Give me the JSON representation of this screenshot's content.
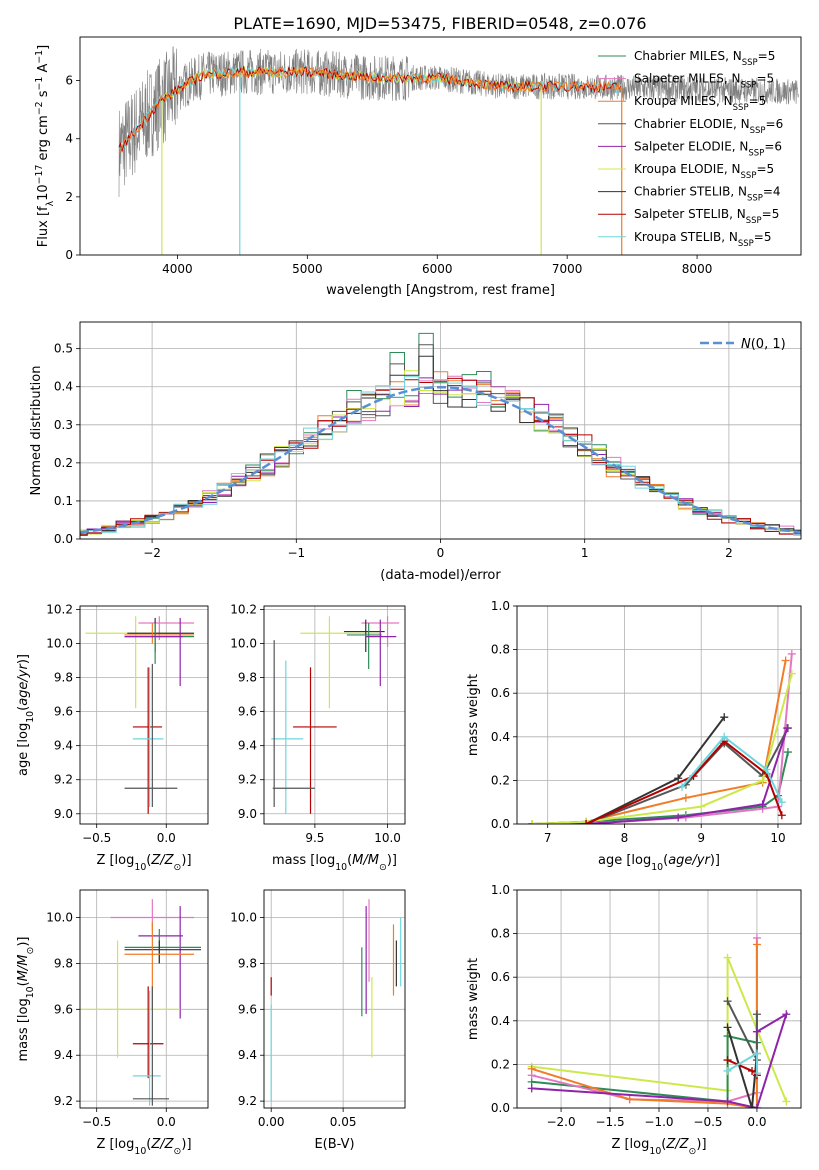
{
  "figure_title": "PLATE=1690, MJD=53475, FIBERID=0548, z=0.076",
  "colors": {
    "Chabrier MILES": "#2e8b57",
    "Salpeter MILES": "#e377c2",
    "Kroupa MILES": "#f07c28",
    "Chabrier ELODIE": "#555555",
    "Salpeter ELODIE": "#8e24aa",
    "Kroupa ELODIE": "#cde84b",
    "Chabrier STELIB": "#333333",
    "Salpeter STELIB": "#b30000",
    "Kroupa STELIB": "#6fd6dc",
    "model_gaussian": "#5a8fd6",
    "grid": "#b0b0b0"
  },
  "chart_data": [
    {
      "id": "spectrum",
      "type": "line",
      "xlabel": "wavelength [Angstrom, rest frame]",
      "ylabel": "Flux [f_λ 10^-17 erg cm^-2 s^-1 A^-1]",
      "xlim": [
        3250,
        8800
      ],
      "ylim": [
        0,
        7.5
      ],
      "xticks": [
        4000,
        5000,
        6000,
        7000,
        8000
      ],
      "yticks": [
        0,
        2,
        4,
        6
      ],
      "grid": false,
      "legend_position": "upper-right",
      "legend": [
        {
          "label": "Chabrier MILES, N",
          "sub": "SSP",
          "suffix": "=5"
        },
        {
          "label": "Salpeter MILES, N",
          "sub": "SSP",
          "suffix": "=5"
        },
        {
          "label": "Kroupa MILES, N",
          "sub": "SSP",
          "suffix": "=5"
        },
        {
          "label": "Chabrier ELODIE, N",
          "sub": "SSP",
          "suffix": "=6"
        },
        {
          "label": "Salpeter ELODIE, N",
          "sub": "SSP",
          "suffix": "=6"
        },
        {
          "label": "Kroupa ELODIE, N",
          "sub": "SSP",
          "suffix": "=5"
        },
        {
          "label": "Chabrier STELIB, N",
          "sub": "SSP",
          "suffix": "=4"
        },
        {
          "label": "Salpeter STELIB, N",
          "sub": "SSP",
          "suffix": "=5"
        },
        {
          "label": "Kroupa STELIB, N",
          "sub": "SSP",
          "suffix": "=5"
        }
      ],
      "data_continuum": {
        "x": [
          3550,
          3700,
          3850,
          4000,
          4200,
          4500,
          5000,
          5500,
          6000,
          6500,
          7000,
          7500,
          8000,
          8500,
          8800
        ],
        "y": [
          3.6,
          4.4,
          5.2,
          5.7,
          6.2,
          6.3,
          6.3,
          6.1,
          6.1,
          5.8,
          5.8,
          5.75,
          5.7,
          5.65,
          5.6
        ]
      },
      "model_spans": [
        {
          "name": "Kroupa ELODIE",
          "x": [
            3880,
            6800
          ]
        },
        {
          "name": "Kroupa STELIB",
          "x": [
            3550,
            7420
          ]
        },
        {
          "name": "Salpeter STELIB",
          "x": [
            3550,
            7420
          ]
        },
        {
          "name": "Kroupa MILES",
          "x": [
            3550,
            7420
          ]
        }
      ]
    },
    {
      "id": "residuals",
      "type": "histogram",
      "xlabel": "(data-model)/error",
      "ylabel": "Normed distribution",
      "xlim": [
        -2.5,
        2.5
      ],
      "ylim": [
        0,
        0.57
      ],
      "xticks": [
        -2,
        -1,
        0,
        1,
        2
      ],
      "yticks": [
        0.0,
        0.1,
        0.2,
        0.3,
        0.4,
        0.5
      ],
      "grid": true,
      "legend": [
        "N(0, 1)"
      ],
      "legend_position": "upper-right",
      "spikes": [
        {
          "x": -0.25,
          "h": 0.49
        },
        {
          "x": -0.05,
          "h": 0.54
        },
        {
          "x": 0.35,
          "h": 0.44
        },
        {
          "x": -0.55,
          "h": 0.39
        }
      ]
    },
    {
      "id": "age_vs_Z",
      "type": "errorbar",
      "xlabel": "Z [log10(Z/Z⊙)]",
      "ylabel": "age  [log10(age/yr)]",
      "xlim": [
        -0.62,
        0.3
      ],
      "ylim": [
        8.94,
        10.22
      ],
      "xticks": [
        -0.5,
        0.0
      ],
      "yticks": [
        9.0,
        9.2,
        9.4,
        9.6,
        9.8,
        10.0,
        10.2
      ],
      "grid": true,
      "points": [
        {
          "s": "Kroupa ELODIE",
          "x": -0.22,
          "y": 10.06,
          "xe": [
            -0.58,
            0.1
          ],
          "ye": [
            9.62,
            10.16
          ]
        },
        {
          "s": "Salpeter MILES",
          "x": -0.05,
          "y": 10.12,
          "xe": [
            -0.2,
            0.2
          ],
          "ye": [
            10.02,
            10.16
          ]
        },
        {
          "s": "Chabrier STELIB",
          "x": -0.08,
          "y": 10.06,
          "xe": [
            -0.28,
            0.2
          ],
          "ye": [
            9.95,
            10.15
          ]
        },
        {
          "s": "Kroupa MILES",
          "x": -0.1,
          "y": 10.05,
          "xe": [
            -0.3,
            0.2
          ],
          "ye": [
            10.0,
            10.12
          ]
        },
        {
          "s": "Chabrier MILES",
          "x": -0.08,
          "y": 10.04,
          "xe": [
            -0.3,
            0.2
          ],
          "ye": [
            9.88,
            10.12
          ]
        },
        {
          "s": "Salpeter ELODIE",
          "x": 0.1,
          "y": 10.04,
          "xe": [
            -0.3,
            0.12
          ],
          "ye": [
            9.75,
            10.15
          ]
        },
        {
          "s": "Salpeter STELIB",
          "x": -0.13,
          "y": 9.51,
          "xe": [
            -0.24,
            -0.03
          ],
          "ye": [
            9.0,
            9.86
          ]
        },
        {
          "s": "Kroupa STELIB",
          "x": -0.12,
          "y": 9.44,
          "xe": [
            -0.24,
            -0.02
          ],
          "ye": [
            9.04,
            9.86
          ]
        },
        {
          "s": "Chabrier ELODIE",
          "x": -0.1,
          "y": 9.15,
          "xe": [
            -0.3,
            0.08
          ],
          "ye": [
            9.04,
            9.88
          ]
        }
      ]
    },
    {
      "id": "age_vs_mass",
      "type": "errorbar",
      "xlabel": "mass [log10(M/M⊙)]",
      "ylabel": "",
      "xlim": [
        9.15,
        10.12
      ],
      "ylim": [
        8.94,
        10.22
      ],
      "xticks": [
        9.5,
        10.0
      ],
      "yticks": [
        9.0,
        9.2,
        9.4,
        9.6,
        9.8,
        10.0,
        10.2
      ],
      "grid": true,
      "points": [
        {
          "s": "Kroupa ELODIE",
          "x": 9.6,
          "y": 10.06,
          "xe": [
            9.4,
            9.95
          ],
          "ye": [
            9.62,
            10.16
          ]
        },
        {
          "s": "Salpeter MILES",
          "x": 10.0,
          "y": 10.12,
          "xe": [
            9.82,
            10.08
          ],
          "ye": [
            9.98,
            10.16
          ]
        },
        {
          "s": "Chabrier STELIB",
          "x": 9.85,
          "y": 10.07,
          "xe": [
            9.7,
            9.98
          ],
          "ye": [
            9.95,
            10.14
          ]
        },
        {
          "s": "Chabrier MILES",
          "x": 9.87,
          "y": 10.05,
          "xe": [
            9.72,
            9.96
          ],
          "ye": [
            9.85,
            10.12
          ]
        },
        {
          "s": "Salpeter ELODIE",
          "x": 9.95,
          "y": 10.04,
          "xe": [
            9.85,
            10.06
          ],
          "ye": [
            9.75,
            10.14
          ]
        },
        {
          "s": "Salpeter STELIB",
          "x": 9.47,
          "y": 9.51,
          "xe": [
            9.35,
            9.65
          ],
          "ye": [
            9.0,
            9.86
          ]
        },
        {
          "s": "Kroupa STELIB",
          "x": 9.3,
          "y": 9.44,
          "xe": [
            9.2,
            9.42
          ],
          "ye": [
            9.0,
            9.9
          ]
        },
        {
          "s": "Chabrier ELODIE",
          "x": 9.22,
          "y": 9.15,
          "xe": [
            9.21,
            9.5
          ],
          "ye": [
            9.04,
            10.02
          ]
        }
      ]
    },
    {
      "id": "weight_vs_age",
      "type": "line",
      "xlabel": "age  [log10(age/yr)]",
      "ylabel": "mass weight",
      "xlim": [
        6.6,
        10.3
      ],
      "ylim": [
        0,
        1.0
      ],
      "xticks": [
        7,
        8,
        9,
        10
      ],
      "yticks": [
        0.0,
        0.2,
        0.4,
        0.6,
        0.8,
        1.0
      ],
      "grid": true,
      "series": [
        {
          "name": "Chabrier MILES",
          "x": [
            6.8,
            7.5,
            8.8,
            9.8,
            10.0,
            10.13
          ],
          "y": [
            0.0,
            0.01,
            0.04,
            0.08,
            0.13,
            0.33
          ]
        },
        {
          "name": "Salpeter MILES",
          "x": [
            6.8,
            7.5,
            8.8,
            9.8,
            10.0,
            10.18
          ],
          "y": [
            0.0,
            0.0,
            0.03,
            0.07,
            0.08,
            0.78
          ]
        },
        {
          "name": "Kroupa MILES",
          "x": [
            6.8,
            7.5,
            8.8,
            9.8,
            10.1
          ],
          "y": [
            0.0,
            0.01,
            0.12,
            0.19,
            0.75
          ]
        },
        {
          "name": "Chabrier ELODIE",
          "x": [
            6.8,
            7.5,
            8.8,
            9.3,
            9.8,
            10.13
          ],
          "y": [
            0.0,
            0.0,
            0.18,
            0.37,
            0.22,
            0.44
          ]
        },
        {
          "name": "Salpeter ELODIE",
          "x": [
            6.8,
            7.5,
            8.7,
            9.8,
            10.12
          ],
          "y": [
            0.0,
            0.0,
            0.03,
            0.09,
            0.44
          ]
        },
        {
          "name": "Kroupa ELODIE",
          "x": [
            6.8,
            7.5,
            9.0,
            9.8,
            10.18
          ],
          "y": [
            0.0,
            0.01,
            0.08,
            0.2,
            0.69
          ]
        },
        {
          "name": "Chabrier STELIB",
          "x": [
            7.5,
            8.7,
            9.3
          ],
          "y": [
            0.0,
            0.21,
            0.49
          ]
        },
        {
          "name": "Salpeter STELIB",
          "x": [
            7.5,
            8.9,
            9.3,
            9.85,
            10.05
          ],
          "y": [
            0.0,
            0.22,
            0.38,
            0.23,
            0.04
          ]
        },
        {
          "name": "Kroupa STELIB",
          "x": [
            8.75,
            9.3,
            9.85,
            10.05
          ],
          "y": [
            0.17,
            0.4,
            0.25,
            0.1
          ]
        }
      ]
    },
    {
      "id": "mass_vs_Z",
      "type": "errorbar",
      "xlabel": "Z [log10(Z/Z⊙)]",
      "ylabel": "mass [log10(M/M⊙)]",
      "xlim": [
        -0.62,
        0.3
      ],
      "ylim": [
        9.17,
        10.12
      ],
      "xticks": [
        -0.5,
        0.0
      ],
      "yticks": [
        9.2,
        9.4,
        9.6,
        9.8,
        10.0
      ],
      "grid": true,
      "points": [
        {
          "s": "Salpeter MILES",
          "x": -0.1,
          "y": 10.0,
          "xe": [
            -0.4,
            0.2
          ],
          "ye": [
            9.94,
            10.08
          ]
        },
        {
          "s": "Salpeter ELODIE",
          "x": 0.1,
          "y": 9.92,
          "xe": [
            -0.2,
            0.12
          ],
          "ye": [
            9.56,
            10.05
          ]
        },
        {
          "s": "Chabrier MILES",
          "x": -0.05,
          "y": 9.87,
          "xe": [
            -0.3,
            0.25
          ],
          "ye": [
            9.8,
            9.95
          ]
        },
        {
          "s": "Chabrier STELIB",
          "x": -0.05,
          "y": 9.86,
          "xe": [
            -0.3,
            0.25
          ],
          "ye": [
            9.8,
            9.9
          ]
        },
        {
          "s": "Kroupa MILES",
          "x": -0.1,
          "y": 9.84,
          "xe": [
            -0.3,
            0.2
          ],
          "ye": [
            9.6,
            9.98
          ]
        },
        {
          "s": "Kroupa ELODIE",
          "x": -0.35,
          "y": 9.6,
          "xe": [
            -0.62,
            0.1
          ],
          "ye": [
            9.39,
            9.9
          ]
        },
        {
          "s": "Salpeter STELIB",
          "x": -0.13,
          "y": 9.45,
          "xe": [
            -0.24,
            -0.02
          ],
          "ye": [
            9.3,
            9.7
          ]
        },
        {
          "s": "Kroupa STELIB",
          "x": -0.12,
          "y": 9.31,
          "xe": [
            -0.24,
            -0.04
          ],
          "ye": [
            9.18,
            9.68
          ]
        },
        {
          "s": "Chabrier ELODIE",
          "x": -0.1,
          "y": 9.21,
          "xe": [
            -0.24,
            0.02
          ],
          "ye": [
            9.18,
            9.7
          ]
        }
      ]
    },
    {
      "id": "mass_vs_ebv",
      "type": "errorbar",
      "xlabel": "E(B-V)",
      "ylabel": "",
      "xlim": [
        -0.005,
        0.093
      ],
      "ylim": [
        9.17,
        10.12
      ],
      "xticks": [
        0.0,
        0.05
      ],
      "yticks": [
        9.2,
        9.4,
        9.6,
        9.8,
        10.0
      ],
      "grid": true,
      "points": [
        {
          "s": "Chabrier MILES",
          "x": 0.063,
          "ye": [
            9.57,
            9.87
          ]
        },
        {
          "s": "Salpeter ELODIE",
          "x": 0.066,
          "ye": [
            9.58,
            10.05
          ]
        },
        {
          "s": "Kroupa ELODIE",
          "x": 0.07,
          "ye": [
            9.39,
            9.74
          ]
        },
        {
          "s": "Salpeter MILES",
          "x": 0.068,
          "ye": [
            9.72,
            10.08
          ]
        },
        {
          "s": "Kroupa MILES",
          "x": 0.085,
          "ye": [
            9.66,
            9.97
          ]
        },
        {
          "s": "Chabrier STELIB",
          "x": 0.087,
          "ye": [
            9.7,
            9.9
          ]
        },
        {
          "s": "Kroupa STELIB",
          "x": 0.09,
          "ye": [
            9.7,
            10.0
          ]
        },
        {
          "s": "Salpeter STELIB",
          "x": 0.0,
          "ye": [
            9.66,
            9.74
          ]
        },
        {
          "s": "Kroupa STELIB",
          "x": 0.0,
          "ye": [
            9.2,
            9.62
          ]
        }
      ]
    },
    {
      "id": "weight_vs_Z",
      "type": "line",
      "xlabel": "Z [log10(Z/Z⊙)]",
      "ylabel": "mass weight",
      "xlim": [
        -2.45,
        0.45
      ],
      "ylim": [
        0,
        1.0
      ],
      "xticks": [
        -2.0,
        -1.5,
        -1.0,
        -0.5,
        0.0
      ],
      "yticks": [
        0.0,
        0.2,
        0.4,
        0.6,
        0.8,
        1.0
      ],
      "grid": true,
      "series": [
        {
          "name": "Kroupa ELODIE",
          "x": [
            -2.3,
            -0.3,
            -0.3,
            0.3
          ],
          "y": [
            0.19,
            0.08,
            0.69,
            0.03
          ]
        },
        {
          "name": "Chabrier MILES",
          "x": [
            -2.3,
            -0.3,
            -0.3,
            0.0
          ],
          "y": [
            0.12,
            0.03,
            0.33,
            0.3
          ]
        },
        {
          "name": "Salpeter MILES",
          "x": [
            -2.3,
            -1.3,
            -0.3,
            0.0,
            0.0
          ],
          "y": [
            0.15,
            0.04,
            0.03,
            0.07,
            0.78
          ]
        },
        {
          "name": "Kroupa MILES",
          "x": [
            -2.3,
            -1.3,
            -0.3,
            0.0,
            0.0
          ],
          "y": [
            0.18,
            0.04,
            0.02,
            0.0,
            0.75
          ]
        },
        {
          "name": "Chabrier ELODIE",
          "x": [
            -0.3,
            0.0,
            0.0
          ],
          "y": [
            0.49,
            0.22,
            0.43
          ]
        },
        {
          "name": "Salpeter ELODIE",
          "x": [
            -2.3,
            -0.3,
            0.0,
            0.3,
            0.0
          ],
          "y": [
            0.09,
            0.03,
            0.0,
            0.43,
            0.35
          ]
        },
        {
          "name": "Chabrier STELIB",
          "x": [
            -0.3,
            -0.05,
            0.0
          ],
          "y": [
            0.37,
            0.0,
            0.25
          ]
        },
        {
          "name": "Salpeter STELIB",
          "x": [
            -0.3,
            -0.05,
            0.0
          ],
          "y": [
            0.22,
            0.17,
            0.15
          ]
        },
        {
          "name": "Kroupa STELIB",
          "x": [
            -0.3,
            0.0,
            0.0
          ],
          "y": [
            0.17,
            0.25,
            0.16
          ]
        }
      ]
    }
  ]
}
